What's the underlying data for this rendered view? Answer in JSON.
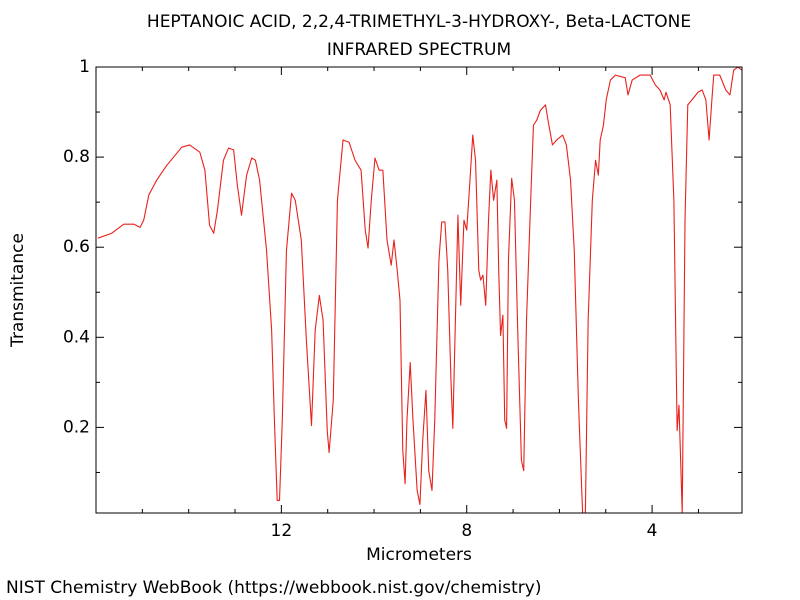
{
  "chart_data": {
    "type": "line",
    "title": "HEPTANOIC ACID, 2,2,4-TRIMETHYL-3-HYDROXY-, Beta-LACTONE",
    "subtitle": "INFRARED SPECTRUM",
    "x_label": "Micrometers",
    "y_label": "Transmitance",
    "source": "NIST Chemistry WebBook (https://webbook.nist.gov/chemistry)",
    "xlim": [
      16,
      2.06
    ],
    "ylim": [
      0.01,
      1
    ],
    "xticks": [
      12,
      8,
      4
    ],
    "x_minor_ticks": [
      15,
      14,
      13,
      11,
      10,
      9,
      7,
      6,
      5,
      3
    ],
    "yticks": [
      1,
      0.8,
      0.6,
      0.4,
      0.2
    ],
    "y_minor_ticks": [
      0.9,
      0.7,
      0.5,
      0.3,
      0.1
    ],
    "series": [
      {
        "name": "spectrum",
        "color": "#e8211d",
        "x": [
          15.96,
          15.66,
          15.4,
          15.18,
          15.05,
          14.97,
          14.86,
          14.69,
          14.47,
          14.15,
          13.98,
          13.76,
          13.65,
          13.55,
          13.46,
          13.38,
          13.25,
          13.14,
          13.03,
          12.95,
          12.86,
          12.75,
          12.64,
          12.56,
          12.47,
          12.32,
          12.21,
          12.15,
          12.09,
          12.04,
          11.98,
          11.89,
          11.78,
          11.7,
          11.57,
          11.46,
          11.35,
          11.27,
          11.18,
          11.1,
          11.01,
          10.97,
          10.88,
          10.79,
          10.67,
          10.54,
          10.41,
          10.28,
          10.19,
          10.13,
          10.06,
          9.98,
          9.89,
          9.81,
          9.72,
          9.63,
          9.57,
          9.5,
          9.44,
          9.38,
          9.33,
          9.29,
          9.22,
          9.16,
          9.07,
          9.01,
          8.95,
          8.88,
          8.82,
          8.75,
          8.69,
          8.6,
          8.54,
          8.47,
          8.41,
          8.34,
          8.3,
          8.26,
          8.19,
          8.13,
          8.06,
          8.0,
          7.93,
          7.87,
          7.81,
          7.74,
          7.7,
          7.65,
          7.59,
          7.53,
          7.48,
          7.42,
          7.35,
          7.31,
          7.27,
          7.22,
          7.18,
          7.14,
          7.1,
          7.03,
          6.97,
          6.9,
          6.82,
          6.77,
          6.71,
          6.62,
          6.56,
          6.49,
          6.41,
          6.3,
          6.24,
          6.15,
          6.06,
          5.93,
          5.85,
          5.76,
          5.68,
          5.59,
          5.5,
          5.44,
          5.38,
          5.29,
          5.22,
          5.16,
          5.12,
          5.05,
          4.99,
          4.9,
          4.79,
          4.58,
          4.52,
          4.43,
          4.26,
          4.04,
          3.93,
          3.83,
          3.74,
          3.7,
          3.61,
          3.53,
          3.46,
          3.42,
          3.35,
          3.29,
          3.23,
          3.14,
          3.01,
          2.92,
          2.84,
          2.77,
          2.71,
          2.67,
          2.54,
          2.41,
          2.32,
          2.24,
          2.15,
          2.06
        ],
        "values": [
          0.62,
          0.631,
          0.651,
          0.651,
          0.644,
          0.66,
          0.716,
          0.749,
          0.782,
          0.822,
          0.827,
          0.811,
          0.771,
          0.649,
          0.631,
          0.682,
          0.793,
          0.82,
          0.816,
          0.738,
          0.671,
          0.76,
          0.798,
          0.793,
          0.749,
          0.593,
          0.416,
          0.216,
          0.038,
          0.038,
          0.216,
          0.593,
          0.72,
          0.704,
          0.616,
          0.393,
          0.204,
          0.416,
          0.493,
          0.438,
          0.193,
          0.144,
          0.26,
          0.704,
          0.838,
          0.833,
          0.793,
          0.771,
          0.638,
          0.598,
          0.704,
          0.798,
          0.771,
          0.771,
          0.616,
          0.56,
          0.616,
          0.549,
          0.482,
          0.149,
          0.075,
          0.216,
          0.344,
          0.216,
          0.06,
          0.029,
          0.171,
          0.282,
          0.104,
          0.06,
          0.216,
          0.571,
          0.656,
          0.656,
          0.549,
          0.304,
          0.198,
          0.371,
          0.671,
          0.471,
          0.66,
          0.638,
          0.749,
          0.849,
          0.793,
          0.549,
          0.527,
          0.538,
          0.471,
          0.66,
          0.771,
          0.704,
          0.749,
          0.549,
          0.404,
          0.449,
          0.216,
          0.198,
          0.571,
          0.753,
          0.704,
          0.416,
          0.127,
          0.104,
          0.438,
          0.704,
          0.871,
          0.882,
          0.904,
          0.916,
          0.878,
          0.827,
          0.838,
          0.849,
          0.827,
          0.749,
          0.593,
          0.26,
          0.01,
          0.01,
          0.438,
          0.704,
          0.793,
          0.76,
          0.838,
          0.871,
          0.927,
          0.971,
          0.982,
          0.976,
          0.938,
          0.971,
          0.982,
          0.982,
          0.96,
          0.949,
          0.927,
          0.944,
          0.916,
          0.704,
          0.193,
          0.249,
          0.01,
          0.66,
          0.916,
          0.927,
          0.944,
          0.949,
          0.927,
          0.838,
          0.927,
          0.982,
          0.982,
          0.949,
          0.938,
          0.993,
          1,
          0.993
        ]
      }
    ]
  }
}
